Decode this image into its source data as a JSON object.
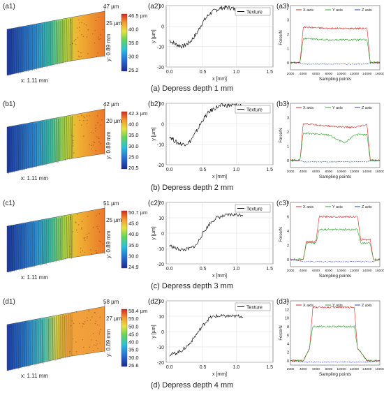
{
  "figure": {
    "rows": [
      {
        "id": "a",
        "surface": {
          "label": "(a1)",
          "x_axis": "x: 1.11 mm",
          "y_axis": "y: 0.89 mm",
          "top_height": "47 µm",
          "mid_height": "25 µm",
          "colorbar_ticks": [
            "46.5 µm",
            "40.0",
            "35.0",
            "30.0",
            "25.2"
          ]
        },
        "profile": {
          "label": "(a2)",
          "legend": "Texture",
          "ylabel": "y [µm]",
          "xlabel": "x [mm]",
          "yticks": [
            "10",
            "0",
            "-10",
            "-20"
          ],
          "xticks": [
            "0.0",
            "0.5",
            "1.0",
            "1.5"
          ]
        },
        "force": {
          "label": "(a3)",
          "legend": [
            "X axis",
            "Y axis",
            "Z axis"
          ],
          "ylabel": "Force/N",
          "xlabel": "Sampling points",
          "yticks": [
            "0",
            "1",
            "2",
            "3",
            "4"
          ],
          "xticks": [
            "2000",
            "4000",
            "6000",
            "8000",
            "10000",
            "12000",
            "14000",
            "16000"
          ]
        },
        "caption": "(a) Depress depth 1 mm"
      },
      {
        "id": "b",
        "surface": {
          "label": "(b1)",
          "x_axis": "x: 1.11 mm",
          "y_axis": "y: 0.89 mm",
          "top_height": "42 µm",
          "mid_height": "20 µm",
          "colorbar_ticks": [
            "42.3 µm",
            "40.0",
            "35.0",
            "30.0",
            "25.0",
            "20.5"
          ]
        },
        "profile": {
          "label": "(b2)",
          "legend": "Texture",
          "ylabel": "y [µm]",
          "xlabel": "x [mm]",
          "yticks": [
            "10",
            "0",
            "-10",
            "-20"
          ],
          "xticks": [
            "0.0",
            "0.5",
            "1.0",
            "1.5"
          ]
        },
        "force": {
          "label": "(b3)",
          "legend": [
            "X axis",
            "Y axis",
            "Z axis"
          ],
          "ylabel": "Force/N",
          "xlabel": "Sampling points",
          "yticks": [
            "0",
            "1",
            "2",
            "3",
            "4"
          ],
          "xticks": [
            "2000",
            "4000",
            "6000",
            "8000",
            "10000",
            "12000",
            "14000",
            "16000"
          ]
        },
        "caption": "(b) Depress depth 2 mm"
      },
      {
        "id": "c",
        "surface": {
          "label": "(c1)",
          "x_axis": "x: 1.11 mm",
          "y_axis": "y: 0.89 mm",
          "top_height": "51 µm",
          "mid_height": "25 µm",
          "colorbar_ticks": [
            "50.7 µm",
            "45.0",
            "40.0",
            "35.0",
            "30.0",
            "24.9"
          ]
        },
        "profile": {
          "label": "(c2)",
          "legend": "Texture",
          "ylabel": "y [µm]",
          "xlabel": "x [mm]",
          "yticks": [
            "20",
            "10",
            "0",
            "-10",
            "-20"
          ],
          "xticks": [
            "0.0",
            "0.5",
            "1.0",
            "1.5"
          ]
        },
        "force": {
          "label": "(c3)",
          "legend": [
            "X axis",
            "Y axis",
            "Z axis"
          ],
          "ylabel": "Force/N",
          "xlabel": "Sampling points",
          "yticks": [
            "0",
            "2",
            "4",
            "6",
            "8"
          ],
          "xticks": [
            "2000",
            "4000",
            "6000",
            "8000",
            "10000",
            "12000",
            "14000",
            "16000"
          ]
        },
        "caption": "(c) Depress depth 3 mm"
      },
      {
        "id": "d",
        "surface": {
          "label": "(d1)",
          "x_axis": "x: 1.11 mm",
          "y_axis": "y: 0.89 mm",
          "top_height": "58 µm",
          "mid_height": "27 µm",
          "colorbar_ticks": [
            "58.4 µm",
            "55.0",
            "50.0",
            "45.0",
            "40.0",
            "35.0",
            "30.0",
            "26.6"
          ]
        },
        "profile": {
          "label": "(d2)",
          "legend": "Texture",
          "ylabel": "y [µm]",
          "xlabel": "x [mm]",
          "yticks": [
            "20",
            "10",
            "0",
            "-10",
            "-20"
          ],
          "xticks": [
            "0.0",
            "0.5",
            "1.0",
            "1.5"
          ]
        },
        "force": {
          "label": "(d3)",
          "legend": [
            "X axis",
            "Y axis",
            "Z axis"
          ],
          "ylabel": "Force/N",
          "xlabel": "Sampling points",
          "yticks": [
            "0",
            "2",
            "4",
            "6",
            "8",
            "10",
            "12",
            "14"
          ],
          "xticks": [
            "2000",
            "4000",
            "6000",
            "8000",
            "10000",
            "12000",
            "14000",
            "16000"
          ]
        },
        "caption": "(d) Depress depth 4 mm"
      }
    ],
    "colors": {
      "x_axis": "#d62728",
      "y_axis": "#2ca02c",
      "z_axis": "#1f3fbf",
      "texture": "#111111"
    }
  },
  "chart_data": [
    {
      "type": "line",
      "panel": "(a2)",
      "xlabel": "x [mm]",
      "ylabel": "y [µm]",
      "xlim": [
        -0.05,
        1.55
      ],
      "ylim": [
        -20,
        10
      ],
      "series": [
        {
          "name": "Texture",
          "x": [
            0.0,
            0.1,
            0.2,
            0.3,
            0.4,
            0.5,
            0.6,
            0.7,
            0.8,
            0.9,
            1.0,
            1.05
          ],
          "values": [
            -7,
            -9,
            -10,
            -8,
            -4,
            2,
            6,
            8,
            9,
            9,
            8,
            8
          ]
        }
      ]
    },
    {
      "type": "line",
      "panel": "(a3)",
      "xlabel": "Sampling points",
      "ylabel": "Force/N",
      "xlim": [
        2000,
        16000
      ],
      "ylim": [
        -0.5,
        4
      ],
      "series": [
        {
          "name": "X axis",
          "x": [
            2000,
            3500,
            4000,
            8000,
            12000,
            14000,
            14500,
            16000
          ],
          "values": [
            0,
            0,
            2.5,
            2.4,
            2.4,
            2.4,
            0,
            0
          ]
        },
        {
          "name": "Y axis",
          "x": [
            2000,
            3500,
            4000,
            8000,
            12000,
            14000,
            14500,
            16000
          ],
          "values": [
            0,
            0,
            1.7,
            1.6,
            1.6,
            1.6,
            0,
            0
          ]
        },
        {
          "name": "Z axis",
          "x": [
            2000,
            3500,
            4000,
            8000,
            12000,
            14000,
            14500,
            16000
          ],
          "values": [
            0,
            0,
            -0.1,
            -0.1,
            -0.1,
            -0.1,
            0,
            0
          ]
        }
      ]
    },
    {
      "type": "line",
      "panel": "(b2)",
      "xlabel": "x [mm]",
      "ylabel": "y [µm]",
      "xlim": [
        -0.05,
        1.55
      ],
      "ylim": [
        -20,
        10
      ],
      "series": [
        {
          "name": "Texture",
          "x": [
            0.0,
            0.1,
            0.2,
            0.3,
            0.4,
            0.5,
            0.6,
            0.7,
            0.8,
            0.9,
            1.0,
            1.1
          ],
          "values": [
            -6,
            -9,
            -10,
            -9,
            -4,
            2,
            6,
            8,
            9,
            9,
            9,
            9
          ]
        }
      ]
    },
    {
      "type": "line",
      "panel": "(b3)",
      "xlabel": "Sampling points",
      "ylabel": "Force/N",
      "xlim": [
        2000,
        16000
      ],
      "ylim": [
        -0.5,
        4
      ],
      "series": [
        {
          "name": "X axis",
          "x": [
            2000,
            3500,
            4000,
            8000,
            12000,
            14000,
            14500,
            16000
          ],
          "values": [
            0,
            0,
            2.6,
            2.4,
            2.3,
            2.5,
            0,
            0
          ]
        },
        {
          "name": "Y axis",
          "x": [
            2000,
            3500,
            4000,
            8000,
            10500,
            12000,
            14000,
            14500,
            16000
          ],
          "values": [
            0,
            0,
            1.9,
            1.8,
            1.2,
            1.8,
            1.8,
            0,
            0
          ]
        },
        {
          "name": "Z axis",
          "x": [
            2000,
            3500,
            4000,
            8000,
            12000,
            14000,
            14500,
            16000
          ],
          "values": [
            0,
            0,
            -0.1,
            -0.1,
            -0.1,
            -0.1,
            0,
            0
          ]
        }
      ]
    },
    {
      "type": "line",
      "panel": "(c2)",
      "xlabel": "x [mm]",
      "ylabel": "y [µm]",
      "xlim": [
        -0.05,
        1.55
      ],
      "ylim": [
        -20,
        20
      ],
      "series": [
        {
          "name": "Texture",
          "x": [
            0.0,
            0.1,
            0.2,
            0.3,
            0.4,
            0.5,
            0.6,
            0.7,
            0.8,
            0.9,
            1.0,
            1.1
          ],
          "values": [
            -8,
            -10,
            -11,
            -10,
            -8,
            0,
            6,
            10,
            11,
            12,
            12,
            12
          ]
        }
      ]
    },
    {
      "type": "line",
      "panel": "(c3)",
      "xlabel": "Sampling points",
      "ylabel": "Force/N",
      "xlim": [
        2000,
        16000
      ],
      "ylim": [
        -1,
        8
      ],
      "series": [
        {
          "name": "X axis",
          "x": [
            2000,
            4000,
            4500,
            6000,
            6500,
            12500,
            13000,
            14500,
            15000,
            16000
          ],
          "values": [
            0,
            0,
            2.5,
            2.5,
            6.0,
            6.0,
            2.8,
            2.8,
            0,
            0
          ]
        },
        {
          "name": "Y axis",
          "x": [
            2000,
            4000,
            4500,
            6000,
            6500,
            12500,
            13000,
            14500,
            15000,
            16000
          ],
          "values": [
            0,
            0,
            2.3,
            2.3,
            4.2,
            4.2,
            2.3,
            2.3,
            0,
            0
          ]
        },
        {
          "name": "Z axis",
          "x": [
            2000,
            4000,
            6000,
            12000,
            15000,
            16000
          ],
          "values": [
            0,
            -0.3,
            -0.3,
            -0.3,
            -0.3,
            0
          ]
        }
      ]
    },
    {
      "type": "line",
      "panel": "(d2)",
      "xlabel": "x [mm]",
      "ylabel": "y [µm]",
      "xlim": [
        -0.05,
        1.55
      ],
      "ylim": [
        -20,
        20
      ],
      "series": [
        {
          "name": "Texture",
          "x": [
            0.0,
            0.1,
            0.2,
            0.3,
            0.4,
            0.5,
            0.6,
            0.7,
            0.8,
            0.9,
            1.0,
            1.1
          ],
          "values": [
            -15,
            -14,
            -12,
            -8,
            -2,
            4,
            9,
            10,
            10,
            10,
            10,
            10
          ]
        }
      ]
    },
    {
      "type": "line",
      "panel": "(d3)",
      "xlabel": "Sampling points",
      "ylabel": "Force/N",
      "xlim": [
        2000,
        16000
      ],
      "ylim": [
        -1,
        14
      ],
      "series": [
        {
          "name": "X axis",
          "x": [
            2000,
            4000,
            5000,
            5500,
            12000,
            12500,
            14000,
            16000
          ],
          "values": [
            0,
            0,
            3,
            12.5,
            12.5,
            3,
            0,
            0
          ]
        },
        {
          "name": "Y axis",
          "x": [
            2000,
            4000,
            5000,
            5500,
            12000,
            12500,
            14000,
            16000
          ],
          "values": [
            0,
            0,
            3,
            8,
            8,
            3,
            0,
            0
          ]
        },
        {
          "name": "Z axis",
          "x": [
            2000,
            4000,
            6000,
            12000,
            14000,
            16000
          ],
          "values": [
            0,
            -0.3,
            -0.3,
            -0.3,
            -0.3,
            0
          ]
        }
      ]
    }
  ]
}
